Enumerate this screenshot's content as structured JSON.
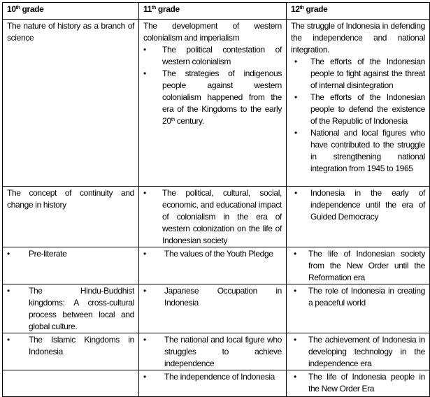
{
  "header": [
    {
      "num": "10",
      "sup": "th",
      "rest": " grade"
    },
    {
      "num": "11",
      "sup": "th",
      "rest": " grade"
    },
    {
      "num": "12",
      "sup": "th",
      "rest": " grade"
    }
  ],
  "rows": [
    {
      "g10": "The nature of history as a branch of science",
      "g11": {
        "intro": "The development of western colonialism and imperialism",
        "bullets": [
          "The political contestation of western colonialism",
          "The strategies of indigenous people against western colonialism happened from the era of the Kingdoms to the early 20"
        ],
        "sup": "th",
        "tail": " century."
      },
      "g12": {
        "intro": "The struggle of Indonesia in defending the independence and national integration.",
        "bullets": [
          "The efforts of the Indonesian people to fight against the threat of internal disintegration",
          "The efforts of the Indonesian people to defend the existence of the Republic of Indonesia",
          "National and local figures who have contributed to the struggle in strengthening national integration from 1945 to 1965"
        ]
      }
    },
    {
      "g10": "The concept of continuity and change in history",
      "g11": "The political, cultural, social, economic, and educational impact of colonialism in the era of western colonization on the life of Indonesian society",
      "g12": "Indonesia in the early of independence until the era of Guided Democracy"
    },
    {
      "g10": "Pre-literate",
      "g11": "The values of the Youth Pledge",
      "g12": "The life of Indonesian society from the New Order until the Reformation era"
    },
    {
      "g10": "The Hindu-Buddhist kingdoms: A cross-cultural process between local and global culture.",
      "g11": "Japanese Occupation in Indonesia",
      "g12": "The role of Indonesia in creating a peaceful world"
    },
    {
      "g10": "The Islamic Kingdoms in Indonesia",
      "g11": "The national and local figure who struggles to achieve independence",
      "g12": "The achievement of Indonesia in developing technology in the independence era"
    },
    {
      "g10": "",
      "g11": "The independence of Indonesia",
      "g12": "The life of Indonesia people in the New Order Era"
    }
  ]
}
